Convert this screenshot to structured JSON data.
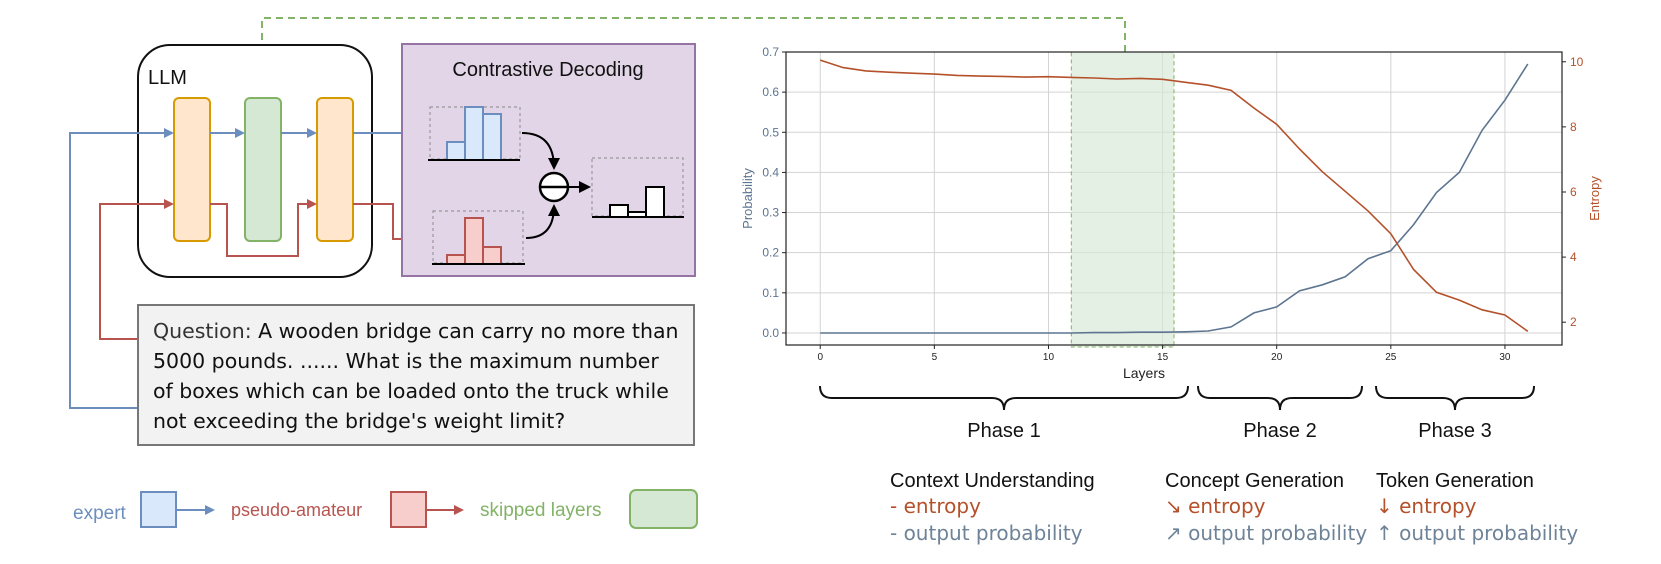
{
  "diagram": {
    "llm_label": "LLM",
    "contrastive_title": "Contrastive Decoding",
    "question": {
      "label": "Question:",
      "text": " A wooden bridge can carry no more than 5000 pounds. ...... What is the maximum number of boxes which can be loaded onto the truck while not exceeding the bridge's weight limit?"
    },
    "legend": {
      "expert": "expert",
      "pseudo_amateur": "pseudo-amateur",
      "skipped": "skipped layers"
    },
    "colors": {
      "expert": "#6c8ebf",
      "expert_fill": "#dae8fc",
      "amateur": "#b85450",
      "amateur_fill": "#f8cecc",
      "skipped": "#82b366",
      "skipped_fill": "#d5e8d4",
      "layer_fill": "#ffe6cc",
      "layer_border": "#d79b00",
      "cd_fill": "#e1d5e7",
      "cd_border": "#9673a6"
    }
  },
  "chart_data": {
    "type": "line",
    "xlabel": "Layers",
    "ylabel_left": "Probability",
    "ylabel_right": "Entropy",
    "xlim": [
      -1.5,
      32.5
    ],
    "ylim_left": [
      -0.03,
      0.7
    ],
    "ylim_right": [
      1.3,
      10.3
    ],
    "xticks": [
      0,
      5,
      10,
      15,
      20,
      25,
      30
    ],
    "yticks_left": [
      0.0,
      0.1,
      0.2,
      0.3,
      0.4,
      0.5,
      0.6,
      0.7
    ],
    "yticks_right": [
      2,
      4,
      6,
      8,
      10
    ],
    "grid": true,
    "skipped_region": [
      11,
      15.5
    ],
    "series": [
      {
        "name": "output probability",
        "axis": "left",
        "color": "#5d7591",
        "x": [
          0,
          1,
          2,
          3,
          4,
          5,
          6,
          7,
          8,
          9,
          10,
          11,
          12,
          13,
          14,
          15,
          16,
          17,
          18,
          19,
          20,
          21,
          22,
          23,
          24,
          25,
          26,
          27,
          28,
          29,
          30,
          31
        ],
        "values": [
          0,
          0,
          0,
          0,
          0,
          0,
          0,
          0,
          0,
          0,
          0,
          0,
          0.001,
          0.001,
          0.002,
          0.002,
          0.003,
          0.005,
          0.015,
          0.05,
          0.065,
          0.105,
          0.12,
          0.14,
          0.185,
          0.205,
          0.27,
          0.35,
          0.4,
          0.505,
          0.58,
          0.67
        ]
      },
      {
        "name": "entropy",
        "axis": "right",
        "color": "#b5512a",
        "x": [
          0,
          1,
          2,
          3,
          4,
          5,
          6,
          7,
          8,
          9,
          10,
          11,
          12,
          13,
          14,
          15,
          16,
          17,
          18,
          19,
          20,
          21,
          22,
          23,
          24,
          25,
          26,
          27,
          28,
          29,
          30,
          31
        ],
        "values": [
          10.05,
          9.82,
          9.72,
          9.68,
          9.65,
          9.62,
          9.58,
          9.56,
          9.55,
          9.53,
          9.54,
          9.52,
          9.5,
          9.47,
          9.49,
          9.46,
          9.37,
          9.28,
          9.12,
          8.58,
          8.08,
          7.32,
          6.62,
          6.02,
          5.42,
          4.72,
          3.62,
          2.92,
          2.68,
          2.38,
          2.22,
          1.72
        ]
      }
    ],
    "phases": [
      {
        "label": "Phase 1",
        "title": "Context Understanding",
        "entropy": "- entropy",
        "prob": "- output probability"
      },
      {
        "label": "Phase 2",
        "title": "Concept Generation",
        "entropy": "↘ entropy",
        "prob": "↗ output probability"
      },
      {
        "label": "Phase 3",
        "title": "Token Generation",
        "entropy": "↓ entropy",
        "prob": "↑ output probability"
      }
    ]
  }
}
